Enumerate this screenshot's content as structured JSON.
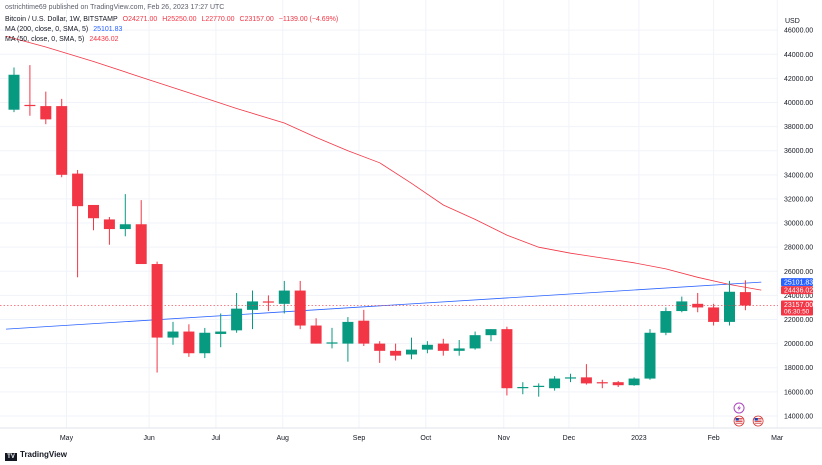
{
  "header": {
    "publisher": "ostrichtime69 published on TradingView.com, Feb 26, 2023 17:27 UTC"
  },
  "legend": {
    "symbol": "Bitcoin / U.S. Dollar, 1W, BITSTAMP",
    "open": "O24271.00",
    "high": "H25250.00",
    "low": "L22770.00",
    "close": "C23157.00",
    "change": "−1139.00 (−4.69%)",
    "ma200_label": "MA (200, close, 0, SMA, 5)",
    "ma200_value": "25101.83",
    "ma50_label": "MA (50, close, 0, SMA, 5)",
    "ma50_value": "24436.02"
  },
  "footer": {
    "brand": "TradingView",
    "logo_text": "TV"
  },
  "colors": {
    "up": "#089981",
    "down": "#f23645",
    "ma200": "#2962ff",
    "ma50": "#f23645",
    "axis_text": "#131722",
    "grid": "#f0f3fa"
  },
  "chart_data": {
    "type": "candlestick",
    "symbol": "Bitcoin / U.S. Dollar",
    "interval": "1W",
    "exchange": "BITSTAMP",
    "currency": "USD",
    "ylim": [
      13000,
      48500
    ],
    "y_ticks": [
      14000,
      16000,
      18000,
      20000,
      22000,
      24000,
      26000,
      28000,
      30000,
      32000,
      34000,
      36000,
      38000,
      40000,
      42000,
      44000,
      46000
    ],
    "y_tick_labels": [
      "14000.00",
      "16000.00",
      "18000.00",
      "20000.00",
      "22000.00",
      "24000.00",
      "26000.00",
      "28000.00",
      "30000.00",
      "32000.00",
      "34000.00",
      "36000.00",
      "38000.00",
      "40000.00",
      "42000.00",
      "44000.00",
      "46000.00"
    ],
    "x_labels": [
      {
        "label": "May",
        "bar": 3.3
      },
      {
        "label": "Jun",
        "bar": 8.5
      },
      {
        "label": "Jul",
        "bar": 12.7
      },
      {
        "label": "Aug",
        "bar": 16.9
      },
      {
        "label": "Sep",
        "bar": 21.7
      },
      {
        "label": "Oct",
        "bar": 25.9
      },
      {
        "label": "Nov",
        "bar": 30.8
      },
      {
        "label": "Dec",
        "bar": 34.9
      },
      {
        "label": "2023",
        "bar": 39.3
      },
      {
        "label": "Feb",
        "bar": 44.0
      },
      {
        "label": "Mar",
        "bar": 48.0
      }
    ],
    "candles": [
      {
        "o": 39400,
        "h": 42900,
        "l": 39200,
        "c": 42300
      },
      {
        "o": 39800,
        "h": 43100,
        "l": 38900,
        "c": 39700
      },
      {
        "o": 39700,
        "h": 40900,
        "l": 38200,
        "c": 38600
      },
      {
        "o": 39700,
        "h": 40300,
        "l": 33800,
        "c": 34000
      },
      {
        "o": 34100,
        "h": 34400,
        "l": 25500,
        "c": 31400
      },
      {
        "o": 31500,
        "h": 31500,
        "l": 29400,
        "c": 30400
      },
      {
        "o": 30300,
        "h": 30500,
        "l": 28200,
        "c": 29500
      },
      {
        "o": 29500,
        "h": 32400,
        "l": 28900,
        "c": 29900
      },
      {
        "o": 29900,
        "h": 31900,
        "l": 26700,
        "c": 26600
      },
      {
        "o": 26600,
        "h": 26800,
        "l": 17600,
        "c": 20500
      },
      {
        "o": 20500,
        "h": 21800,
        "l": 19900,
        "c": 21000
      },
      {
        "o": 21000,
        "h": 21600,
        "l": 18900,
        "c": 19200
      },
      {
        "o": 19200,
        "h": 21300,
        "l": 18800,
        "c": 20900
      },
      {
        "o": 20800,
        "h": 22500,
        "l": 19700,
        "c": 21000
      },
      {
        "o": 21100,
        "h": 24200,
        "l": 20900,
        "c": 22900
      },
      {
        "o": 22800,
        "h": 24400,
        "l": 21200,
        "c": 23500
      },
      {
        "o": 23500,
        "h": 24000,
        "l": 22700,
        "c": 23400
      },
      {
        "o": 23300,
        "h": 25200,
        "l": 22500,
        "c": 24400
      },
      {
        "o": 24400,
        "h": 25200,
        "l": 21200,
        "c": 21500
      },
      {
        "o": 21500,
        "h": 22100,
        "l": 20000,
        "c": 20000
      },
      {
        "o": 20000,
        "h": 21300,
        "l": 19600,
        "c": 20100
      },
      {
        "o": 20000,
        "h": 22200,
        "l": 18500,
        "c": 21800
      },
      {
        "o": 21900,
        "h": 22800,
        "l": 19800,
        "c": 20000
      },
      {
        "o": 20000,
        "h": 20200,
        "l": 18400,
        "c": 19400
      },
      {
        "o": 19400,
        "h": 20000,
        "l": 18600,
        "c": 19000
      },
      {
        "o": 19100,
        "h": 20500,
        "l": 18700,
        "c": 19500
      },
      {
        "o": 19500,
        "h": 20200,
        "l": 19200,
        "c": 19900
      },
      {
        "o": 20000,
        "h": 20400,
        "l": 19000,
        "c": 19400
      },
      {
        "o": 19400,
        "h": 20300,
        "l": 19000,
        "c": 19600
      },
      {
        "o": 19600,
        "h": 21000,
        "l": 19500,
        "c": 20700
      },
      {
        "o": 20700,
        "h": 21200,
        "l": 20200,
        "c": 21200
      },
      {
        "o": 21200,
        "h": 21400,
        "l": 15700,
        "c": 16300
      },
      {
        "o": 16300,
        "h": 16800,
        "l": 15800,
        "c": 16400
      },
      {
        "o": 16400,
        "h": 16700,
        "l": 15600,
        "c": 16500
      },
      {
        "o": 16300,
        "h": 17300,
        "l": 16100,
        "c": 17100
      },
      {
        "o": 17100,
        "h": 17500,
        "l": 16800,
        "c": 17200
      },
      {
        "o": 17200,
        "h": 18300,
        "l": 16600,
        "c": 16700
      },
      {
        "o": 16800,
        "h": 17000,
        "l": 16300,
        "c": 16700
      },
      {
        "o": 16800,
        "h": 16900,
        "l": 16400,
        "c": 16550
      },
      {
        "o": 16550,
        "h": 17200,
        "l": 16500,
        "c": 17100
      },
      {
        "o": 17100,
        "h": 21200,
        "l": 17000,
        "c": 20900
      },
      {
        "o": 20900,
        "h": 23000,
        "l": 20700,
        "c": 22700
      },
      {
        "o": 22700,
        "h": 23900,
        "l": 22600,
        "c": 23500
      },
      {
        "o": 23300,
        "h": 24200,
        "l": 22600,
        "c": 23000
      },
      {
        "o": 23000,
        "h": 23300,
        "l": 21500,
        "c": 21800
      },
      {
        "o": 21800,
        "h": 25200,
        "l": 21500,
        "c": 24300
      },
      {
        "o": 24271,
        "h": 25250,
        "l": 22770,
        "c": 23157
      }
    ],
    "ma200": {
      "name": "MA (200, close, 0, SMA, 5)",
      "points": [
        [
          -0.5,
          21200
        ],
        [
          47,
          25100
        ]
      ]
    },
    "ma50": {
      "name": "MA (50, close, 0, SMA, 5)",
      "points": [
        [
          -0.5,
          45500
        ],
        [
          2,
          44600
        ],
        [
          5,
          43400
        ],
        [
          8,
          42100
        ],
        [
          11,
          40800
        ],
        [
          14,
          39500
        ],
        [
          17,
          38300
        ],
        [
          19,
          37100
        ],
        [
          21,
          36000
        ],
        [
          23,
          35000
        ],
        [
          25,
          33300
        ],
        [
          27,
          31500
        ],
        [
          29,
          30300
        ],
        [
          31,
          29000
        ],
        [
          33,
          28000
        ],
        [
          35,
          27500
        ],
        [
          37,
          27100
        ],
        [
          39,
          26700
        ],
        [
          41,
          26200
        ],
        [
          43,
          25500
        ],
        [
          45,
          24900
        ],
        [
          47,
          24436
        ]
      ]
    },
    "price_labels": [
      {
        "value": 25101.83,
        "text": "25101.83",
        "color": "#2962ff"
      },
      {
        "value": 24436.02,
        "text": "24436.02",
        "color": "#f23645"
      },
      {
        "value": 23157,
        "text": "23157.00",
        "sub": "06:30:50",
        "color": "#f23645"
      }
    ],
    "current_price_line": 23157,
    "event_markers": [
      "lightning-icon",
      "us-flag-icon",
      "us-flag-icon"
    ]
  }
}
